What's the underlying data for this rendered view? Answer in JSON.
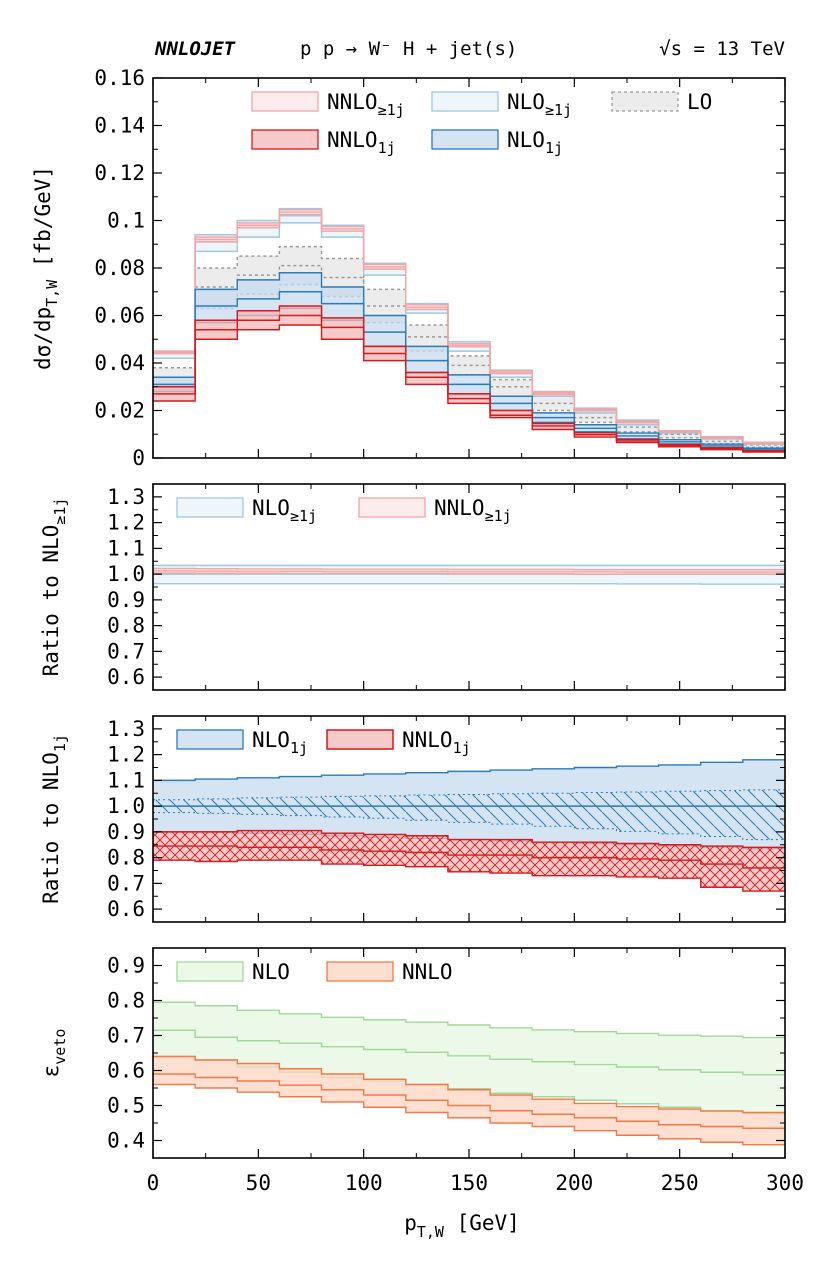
{
  "header": {
    "program": "NNLOJET",
    "process": "p p → W⁻ H + jet(s)",
    "energy": "√s = 13 TeV"
  },
  "x_axis": {
    "label_base": "p",
    "label_sub": "T,W",
    "label_unit": " [GeV]",
    "range": [
      0,
      300
    ],
    "ticks": [
      0,
      50,
      100,
      150,
      200,
      250,
      300
    ],
    "tick_labels": [
      "0",
      "50",
      "100",
      "150",
      "200",
      "250",
      "300"
    ],
    "bin_edges": [
      0,
      20,
      40,
      60,
      80,
      100,
      120,
      140,
      160,
      180,
      200,
      220,
      240,
      260,
      280,
      300
    ]
  },
  "colors": {
    "nnlo_line": "#d7191c",
    "nnlo_fill": "#f4b8b8",
    "nnlo_incl_line": "#f4a5a5",
    "nnlo_incl_fill": "#fde6e6",
    "nlo_line": "#2b7bb9",
    "nlo_fill": "#c6dbee",
    "nlo_incl_line": "#9ecae1",
    "nlo_incl_fill": "#e8f2fa",
    "lo_line": "#999999",
    "lo_fill": "#e6e6e6",
    "veto_nlo_line": "#a1d99b",
    "veto_nlo_fill": "#e5f5e0",
    "veto_nnlo_line": "#f4794a",
    "veto_nnlo_fill": "#fcd5c3"
  },
  "chart_data": [
    {
      "type": "area",
      "panel": "main",
      "ylabel_parts": [
        "dσ/dp",
        "T,W",
        " [fb/GeV]"
      ],
      "ylim": [
        0,
        0.16
      ],
      "yticks": [
        0,
        0.02,
        0.04,
        0.06,
        0.08,
        0.1,
        0.12,
        0.14,
        0.16
      ],
      "ytick_labels": [
        "0",
        "0.02",
        "0.04",
        "0.06",
        "0.08",
        "0.1",
        "0.12",
        "0.14",
        "0.16"
      ],
      "legend": [
        {
          "key": "nnlo_incl",
          "base": "NNLO",
          "sub": "≥1j"
        },
        {
          "key": "nlo_incl",
          "base": "NLO",
          "sub": "≥1j"
        },
        {
          "key": "lo",
          "base": "LO",
          "sub": ""
        },
        {
          "key": "nnlo_1j",
          "base": "NNLO",
          "sub": "1j"
        },
        {
          "key": "nlo_1j",
          "base": "NLO",
          "sub": "1j"
        }
      ],
      "series": [
        {
          "key": "lo",
          "central": [
            0.034,
            0.072,
            0.077,
            0.081,
            0.076,
            0.064,
            0.051,
            0.039,
            0.03,
            0.023,
            0.017,
            0.013,
            0.01,
            0.007,
            0.0055
          ],
          "lo": [
            0.03,
            0.063,
            0.069,
            0.073,
            0.068,
            0.057,
            0.045,
            0.035,
            0.026,
            0.02,
            0.015,
            0.011,
            0.0085,
            0.006,
            0.0045
          ],
          "hi": [
            0.038,
            0.08,
            0.085,
            0.089,
            0.084,
            0.071,
            0.056,
            0.043,
            0.033,
            0.026,
            0.019,
            0.015,
            0.011,
            0.0085,
            0.0065
          ]
        },
        {
          "key": "nlo_incl",
          "central": [
            0.044,
            0.091,
            0.097,
            0.102,
            0.096,
            0.08,
            0.063,
            0.047,
            0.036,
            0.027,
            0.02,
            0.015,
            0.011,
            0.0085,
            0.0062
          ],
          "lo": [
            0.042,
            0.087,
            0.093,
            0.099,
            0.093,
            0.077,
            0.061,
            0.045,
            0.034,
            0.026,
            0.019,
            0.014,
            0.0105,
            0.008,
            0.0058
          ],
          "hi": [
            0.045,
            0.094,
            0.1,
            0.105,
            0.098,
            0.082,
            0.065,
            0.049,
            0.037,
            0.028,
            0.021,
            0.016,
            0.0115,
            0.009,
            0.0066
          ]
        },
        {
          "key": "nnlo_incl",
          "central": [
            0.0445,
            0.092,
            0.098,
            0.1035,
            0.0965,
            0.0805,
            0.0635,
            0.0475,
            0.0362,
            0.0273,
            0.0202,
            0.0152,
            0.0112,
            0.0086,
            0.0063
          ],
          "lo": [
            0.044,
            0.091,
            0.097,
            0.1025,
            0.0955,
            0.0795,
            0.0625,
            0.0468,
            0.0355,
            0.0267,
            0.0198,
            0.0148,
            0.0109,
            0.0083,
            0.0061
          ],
          "hi": [
            0.045,
            0.093,
            0.099,
            0.1045,
            0.0975,
            0.0815,
            0.0645,
            0.0482,
            0.0368,
            0.0279,
            0.0206,
            0.0156,
            0.0115,
            0.0089,
            0.0066
          ]
        },
        {
          "key": "nlo_1j",
          "central": [
            0.031,
            0.064,
            0.067,
            0.07,
            0.065,
            0.053,
            0.041,
            0.031,
            0.023,
            0.017,
            0.0125,
            0.0093,
            0.0068,
            0.0051,
            0.0037
          ],
          "lo": [
            0.028,
            0.057,
            0.06,
            0.063,
            0.058,
            0.047,
            0.036,
            0.027,
            0.02,
            0.015,
            0.011,
            0.0081,
            0.0059,
            0.0044,
            0.0032
          ],
          "hi": [
            0.034,
            0.071,
            0.075,
            0.078,
            0.072,
            0.06,
            0.047,
            0.035,
            0.026,
            0.019,
            0.014,
            0.0105,
            0.0077,
            0.0058,
            0.0042
          ]
        },
        {
          "key": "nnlo_1j",
          "central": [
            0.027,
            0.054,
            0.058,
            0.06,
            0.055,
            0.044,
            0.034,
            0.025,
            0.018,
            0.0135,
            0.0098,
            0.0072,
            0.0052,
            0.0039,
            0.0028
          ],
          "lo": [
            0.024,
            0.05,
            0.054,
            0.056,
            0.05,
            0.041,
            0.031,
            0.023,
            0.017,
            0.012,
            0.0088,
            0.0065,
            0.0047,
            0.0035,
            0.0025
          ],
          "hi": [
            0.03,
            0.058,
            0.062,
            0.064,
            0.059,
            0.047,
            0.036,
            0.027,
            0.02,
            0.0145,
            0.0106,
            0.0078,
            0.0057,
            0.0043,
            0.0031
          ]
        }
      ]
    },
    {
      "type": "area",
      "panel": "ratio_incl",
      "ylabel_parts": [
        "Ratio to NLO",
        "≥1j",
        ""
      ],
      "ylim": [
        0.55,
        1.35
      ],
      "yticks": [
        0.6,
        0.7,
        0.8,
        0.9,
        1.0,
        1.1,
        1.2,
        1.3
      ],
      "ytick_labels": [
        "0.6",
        "0.7",
        "0.8",
        "0.9",
        "1.0",
        "1.1",
        "1.2",
        "1.3"
      ],
      "legend": [
        {
          "key": "nlo_incl",
          "base": "NLO",
          "sub": "≥1j"
        },
        {
          "key": "nnlo_incl",
          "base": "NNLO",
          "sub": "≥1j"
        }
      ],
      "series": [
        {
          "key": "nlo_incl",
          "central": [
            1.0,
            1.0,
            1.0,
            1.0,
            1.0,
            1.0,
            1.0,
            1.0,
            1.0,
            1.0,
            1.0,
            1.0,
            1.0,
            1.0,
            1.0
          ],
          "lo": [
            0.963,
            0.963,
            0.963,
            0.963,
            0.963,
            0.963,
            0.963,
            0.963,
            0.963,
            0.963,
            0.963,
            0.962,
            0.962,
            0.961,
            0.961
          ],
          "hi": [
            1.034,
            1.034,
            1.034,
            1.034,
            1.034,
            1.034,
            1.034,
            1.034,
            1.034,
            1.034,
            1.034,
            1.034,
            1.034,
            1.034,
            1.034
          ]
        },
        {
          "key": "nnlo_incl",
          "central": [
            1.013,
            1.012,
            1.011,
            1.011,
            1.01,
            1.01,
            1.01,
            1.009,
            1.009,
            1.009,
            1.009,
            1.008,
            1.008,
            1.008,
            1.008
          ],
          "lo": [
            1.004,
            1.003,
            1.003,
            1.002,
            1.002,
            1.002,
            1.002,
            1.001,
            1.001,
            1.001,
            1.0,
            1.0,
            1.0,
            1.0,
            1.0
          ],
          "hi": [
            1.022,
            1.021,
            1.02,
            1.02,
            1.019,
            1.019,
            1.019,
            1.018,
            1.018,
            1.018,
            1.017,
            1.017,
            1.017,
            1.017,
            1.017
          ]
        }
      ]
    },
    {
      "type": "area",
      "panel": "ratio_1j",
      "ylabel_parts": [
        "Ratio to NLO",
        "1j",
        ""
      ],
      "ylim": [
        0.55,
        1.35
      ],
      "yticks": [
        0.6,
        0.7,
        0.8,
        0.9,
        1.0,
        1.1,
        1.2,
        1.3
      ],
      "ytick_labels": [
        "0.6",
        "0.7",
        "0.8",
        "0.9",
        "1.0",
        "1.1",
        "1.2",
        "1.3"
      ],
      "legend": [
        {
          "key": "nlo_1j",
          "base": "NLO",
          "sub": "1j"
        },
        {
          "key": "nnlo_1j",
          "base": "NNLO",
          "sub": "1j"
        }
      ],
      "series": [
        {
          "key": "nlo_1j",
          "central": [
            1.0,
            1.0,
            1.0,
            1.0,
            1.0,
            1.0,
            1.0,
            1.0,
            1.0,
            1.0,
            1.0,
            1.0,
            1.0,
            1.0,
            1.0
          ],
          "lo": [
            0.9,
            0.9,
            0.895,
            0.89,
            0.885,
            0.88,
            0.875,
            0.87,
            0.865,
            0.86,
            0.855,
            0.85,
            0.845,
            0.84,
            0.835
          ],
          "hi": [
            1.1,
            1.105,
            1.11,
            1.115,
            1.12,
            1.125,
            1.13,
            1.135,
            1.14,
            1.145,
            1.15,
            1.155,
            1.16,
            1.17,
            1.18
          ],
          "inner_lo": [
            0.975,
            0.972,
            0.968,
            0.963,
            0.958,
            0.953,
            0.945,
            0.937,
            0.93,
            0.922,
            0.912,
            0.902,
            0.892,
            0.882,
            0.87
          ],
          "inner_hi": [
            1.025,
            1.028,
            1.032,
            1.035,
            1.038,
            1.04,
            1.043,
            1.045,
            1.048,
            1.05,
            1.053,
            1.055,
            1.058,
            1.06,
            1.063
          ]
        },
        {
          "key": "nnlo_1j",
          "central": [
            0.845,
            0.845,
            0.84,
            0.84,
            0.83,
            0.825,
            0.82,
            0.81,
            0.81,
            0.8,
            0.8,
            0.795,
            0.79,
            0.775,
            0.76
          ],
          "lo": [
            0.79,
            0.785,
            0.79,
            0.79,
            0.775,
            0.77,
            0.765,
            0.745,
            0.74,
            0.73,
            0.73,
            0.725,
            0.72,
            0.685,
            0.67
          ],
          "hi": [
            0.9,
            0.9,
            0.905,
            0.905,
            0.895,
            0.89,
            0.885,
            0.87,
            0.87,
            0.86,
            0.86,
            0.855,
            0.85,
            0.845,
            0.84
          ]
        }
      ]
    },
    {
      "type": "area",
      "panel": "veto",
      "ylabel_parts": [
        "ε",
        "veto",
        ""
      ],
      "ylim": [
        0.35,
        0.95
      ],
      "yticks": [
        0.4,
        0.5,
        0.6,
        0.7,
        0.8,
        0.9
      ],
      "ytick_labels": [
        "0.4",
        "0.5",
        "0.6",
        "0.7",
        "0.8",
        "0.9"
      ],
      "legend": [
        {
          "key": "veto_nlo",
          "base": "NLO",
          "sub": ""
        },
        {
          "key": "veto_nnlo",
          "base": "NNLO",
          "sub": ""
        }
      ],
      "series": [
        {
          "key": "veto_nlo",
          "central": [
            0.715,
            0.695,
            0.685,
            0.678,
            0.668,
            0.66,
            0.652,
            0.642,
            0.632,
            0.625,
            0.617,
            0.61,
            0.602,
            0.595,
            0.588
          ],
          "lo": [
            0.64,
            0.63,
            0.61,
            0.595,
            0.58,
            0.57,
            0.56,
            0.548,
            0.535,
            0.525,
            0.515,
            0.505,
            0.495,
            0.485,
            0.478
          ],
          "hi": [
            0.795,
            0.785,
            0.772,
            0.762,
            0.752,
            0.745,
            0.738,
            0.73,
            0.722,
            0.716,
            0.711,
            0.706,
            0.701,
            0.698,
            0.694
          ]
        },
        {
          "key": "veto_nnlo",
          "central": [
            0.59,
            0.58,
            0.57,
            0.558,
            0.545,
            0.53,
            0.515,
            0.5,
            0.485,
            0.475,
            0.465,
            0.455,
            0.445,
            0.44,
            0.435
          ],
          "lo": [
            0.56,
            0.55,
            0.538,
            0.525,
            0.51,
            0.495,
            0.48,
            0.465,
            0.45,
            0.44,
            0.428,
            0.415,
            0.405,
            0.395,
            0.388
          ],
          "hi": [
            0.64,
            0.63,
            0.62,
            0.605,
            0.59,
            0.575,
            0.56,
            0.545,
            0.53,
            0.518,
            0.506,
            0.497,
            0.49,
            0.484,
            0.48
          ]
        }
      ]
    }
  ]
}
